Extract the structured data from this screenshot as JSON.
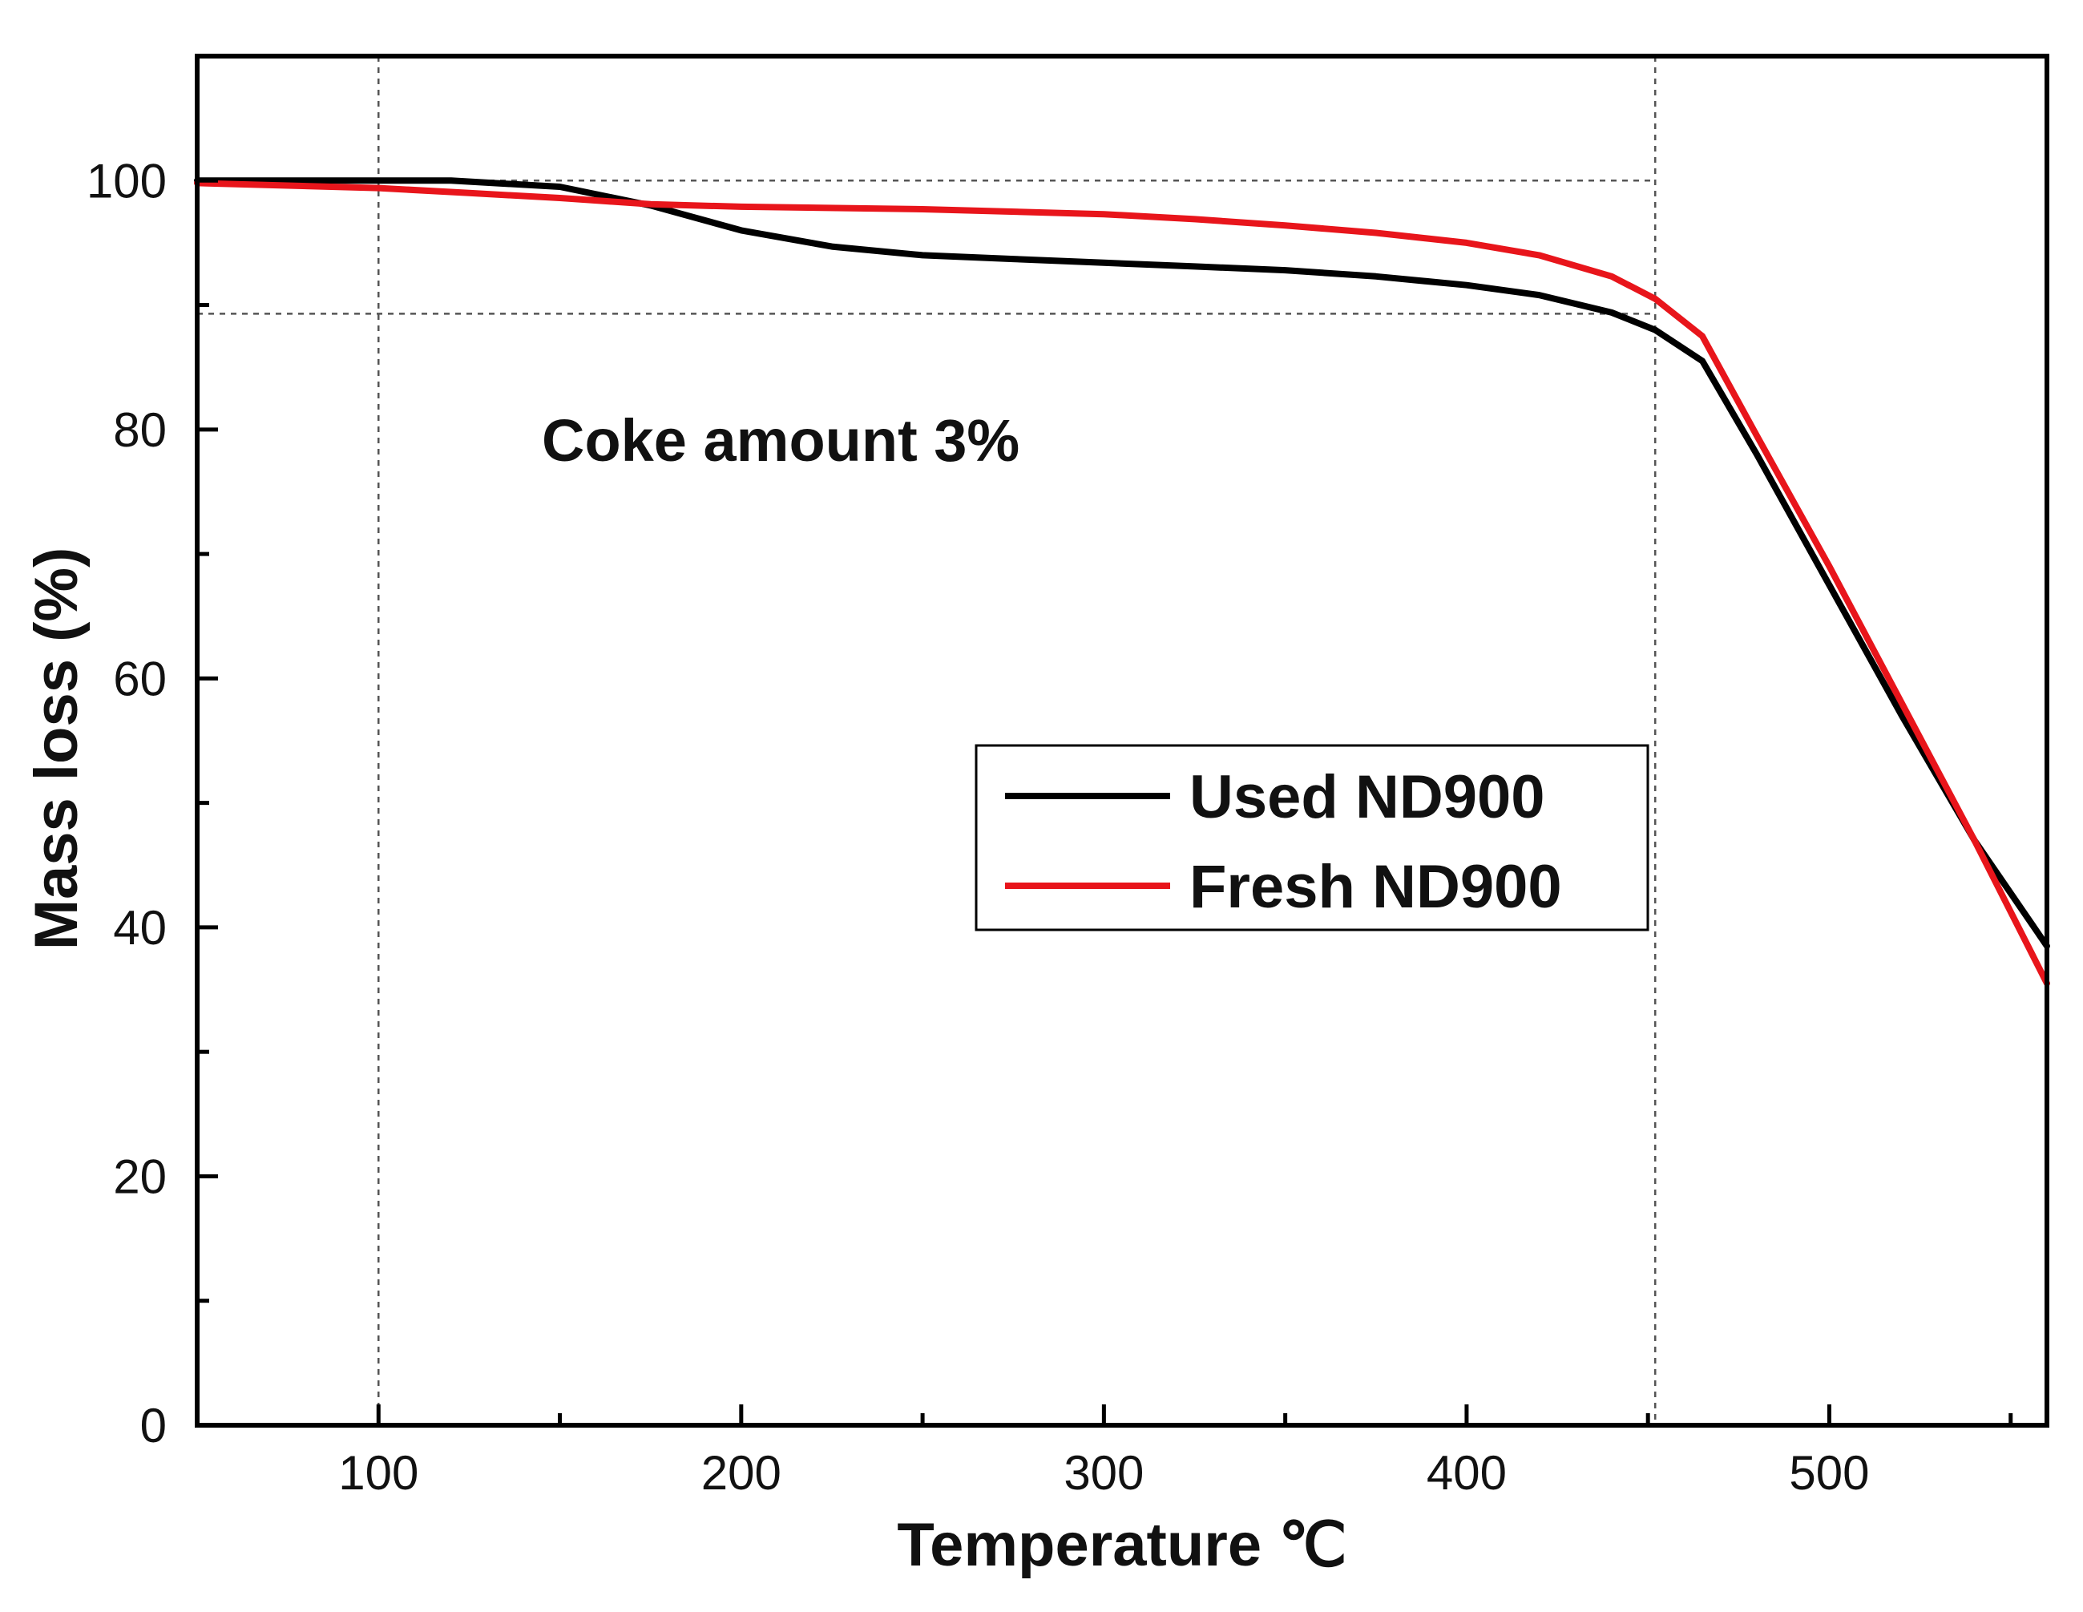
{
  "chart_data": {
    "type": "line",
    "title": "",
    "xlabel": "Temperature ℃",
    "ylabel": "Mass loss (%)",
    "xlim": [
      50,
      560
    ],
    "ylim": [
      0,
      110
    ],
    "xticks": [
      100,
      200,
      300,
      400,
      500
    ],
    "xticks_minor": [
      150,
      250,
      350,
      450,
      550
    ],
    "yticks": [
      0,
      20,
      40,
      60,
      80,
      100
    ],
    "yticks_minor": [
      10,
      30,
      50,
      70,
      90
    ],
    "annotation": "Coke amount 3%",
    "reference_lines": {
      "vertical": [
        100,
        452
      ],
      "horizontal": [
        100,
        89.3
      ]
    },
    "legend_position": "center-right",
    "series": [
      {
        "name": "Used ND900",
        "color": "#000000",
        "x": [
          50,
          100,
          120,
          150,
          175,
          200,
          225,
          250,
          275,
          300,
          325,
          350,
          375,
          400,
          420,
          440,
          452,
          465,
          480,
          500,
          520,
          540,
          560
        ],
        "y": [
          100,
          100,
          100,
          99.5,
          98,
          96,
          94.7,
          94,
          93.7,
          93.4,
          93.1,
          92.8,
          92.3,
          91.6,
          90.8,
          89.4,
          88,
          85.5,
          78,
          67.5,
          57,
          47,
          38.5
        ]
      },
      {
        "name": "Fresh ND900",
        "color": "#e8151b",
        "x": [
          50,
          100,
          125,
          150,
          175,
          200,
          250,
          300,
          325,
          350,
          375,
          400,
          420,
          440,
          452,
          465,
          480,
          500,
          520,
          540,
          560
        ],
        "y": [
          99.8,
          99.4,
          99.0,
          98.6,
          98.1,
          97.9,
          97.7,
          97.3,
          96.9,
          96.4,
          95.8,
          95.0,
          94.0,
          92.3,
          90.5,
          87.5,
          79.5,
          69,
          58,
          47,
          35.5
        ]
      }
    ]
  }
}
